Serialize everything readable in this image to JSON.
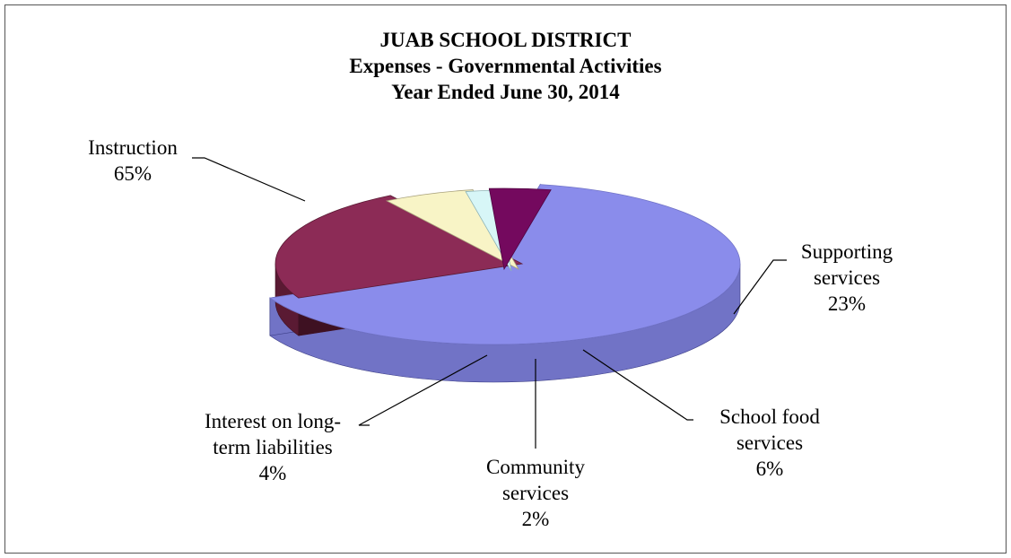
{
  "chart_data": {
    "type": "pie",
    "title_lines": [
      "JUAB SCHOOL DISTRICT",
      "Expenses - Governmental Activities",
      "Year Ended June 30, 2014"
    ],
    "three_d": true,
    "exploded": true,
    "slices": [
      {
        "name": "Instruction",
        "label_lines": [
          "Instruction"
        ],
        "value": 65,
        "value_label": "65%",
        "color": "#8A8CEB",
        "side_color": "#7173C6",
        "dark_color": "#3B3D86"
      },
      {
        "name": "Supporting services",
        "label_lines": [
          "Supporting",
          "services"
        ],
        "value": 23,
        "value_label": "23%",
        "color": "#8C2B56",
        "side_color": "#5A1A33",
        "dark_color": "#3E1122"
      },
      {
        "name": "School food services",
        "label_lines": [
          "School food",
          "services"
        ],
        "value": 6,
        "value_label": "6%",
        "color": "#F8F4C6",
        "side_color": "#A9A27C",
        "dark_color": "#7F795B"
      },
      {
        "name": "Community services",
        "label_lines": [
          "Community",
          "services"
        ],
        "value": 2,
        "value_label": "2%",
        "color": "#D7F6F7",
        "side_color": "#8FB3B5",
        "dark_color": "#6A8B8C"
      },
      {
        "name": "Interest on long-term liabilities",
        "label_lines": [
          "Interest on long-",
          "term liabilities"
        ],
        "value": 4,
        "value_label": "4%",
        "color": "#74095E",
        "side_color": "#4E0440",
        "dark_color": "#36022C"
      }
    ]
  }
}
